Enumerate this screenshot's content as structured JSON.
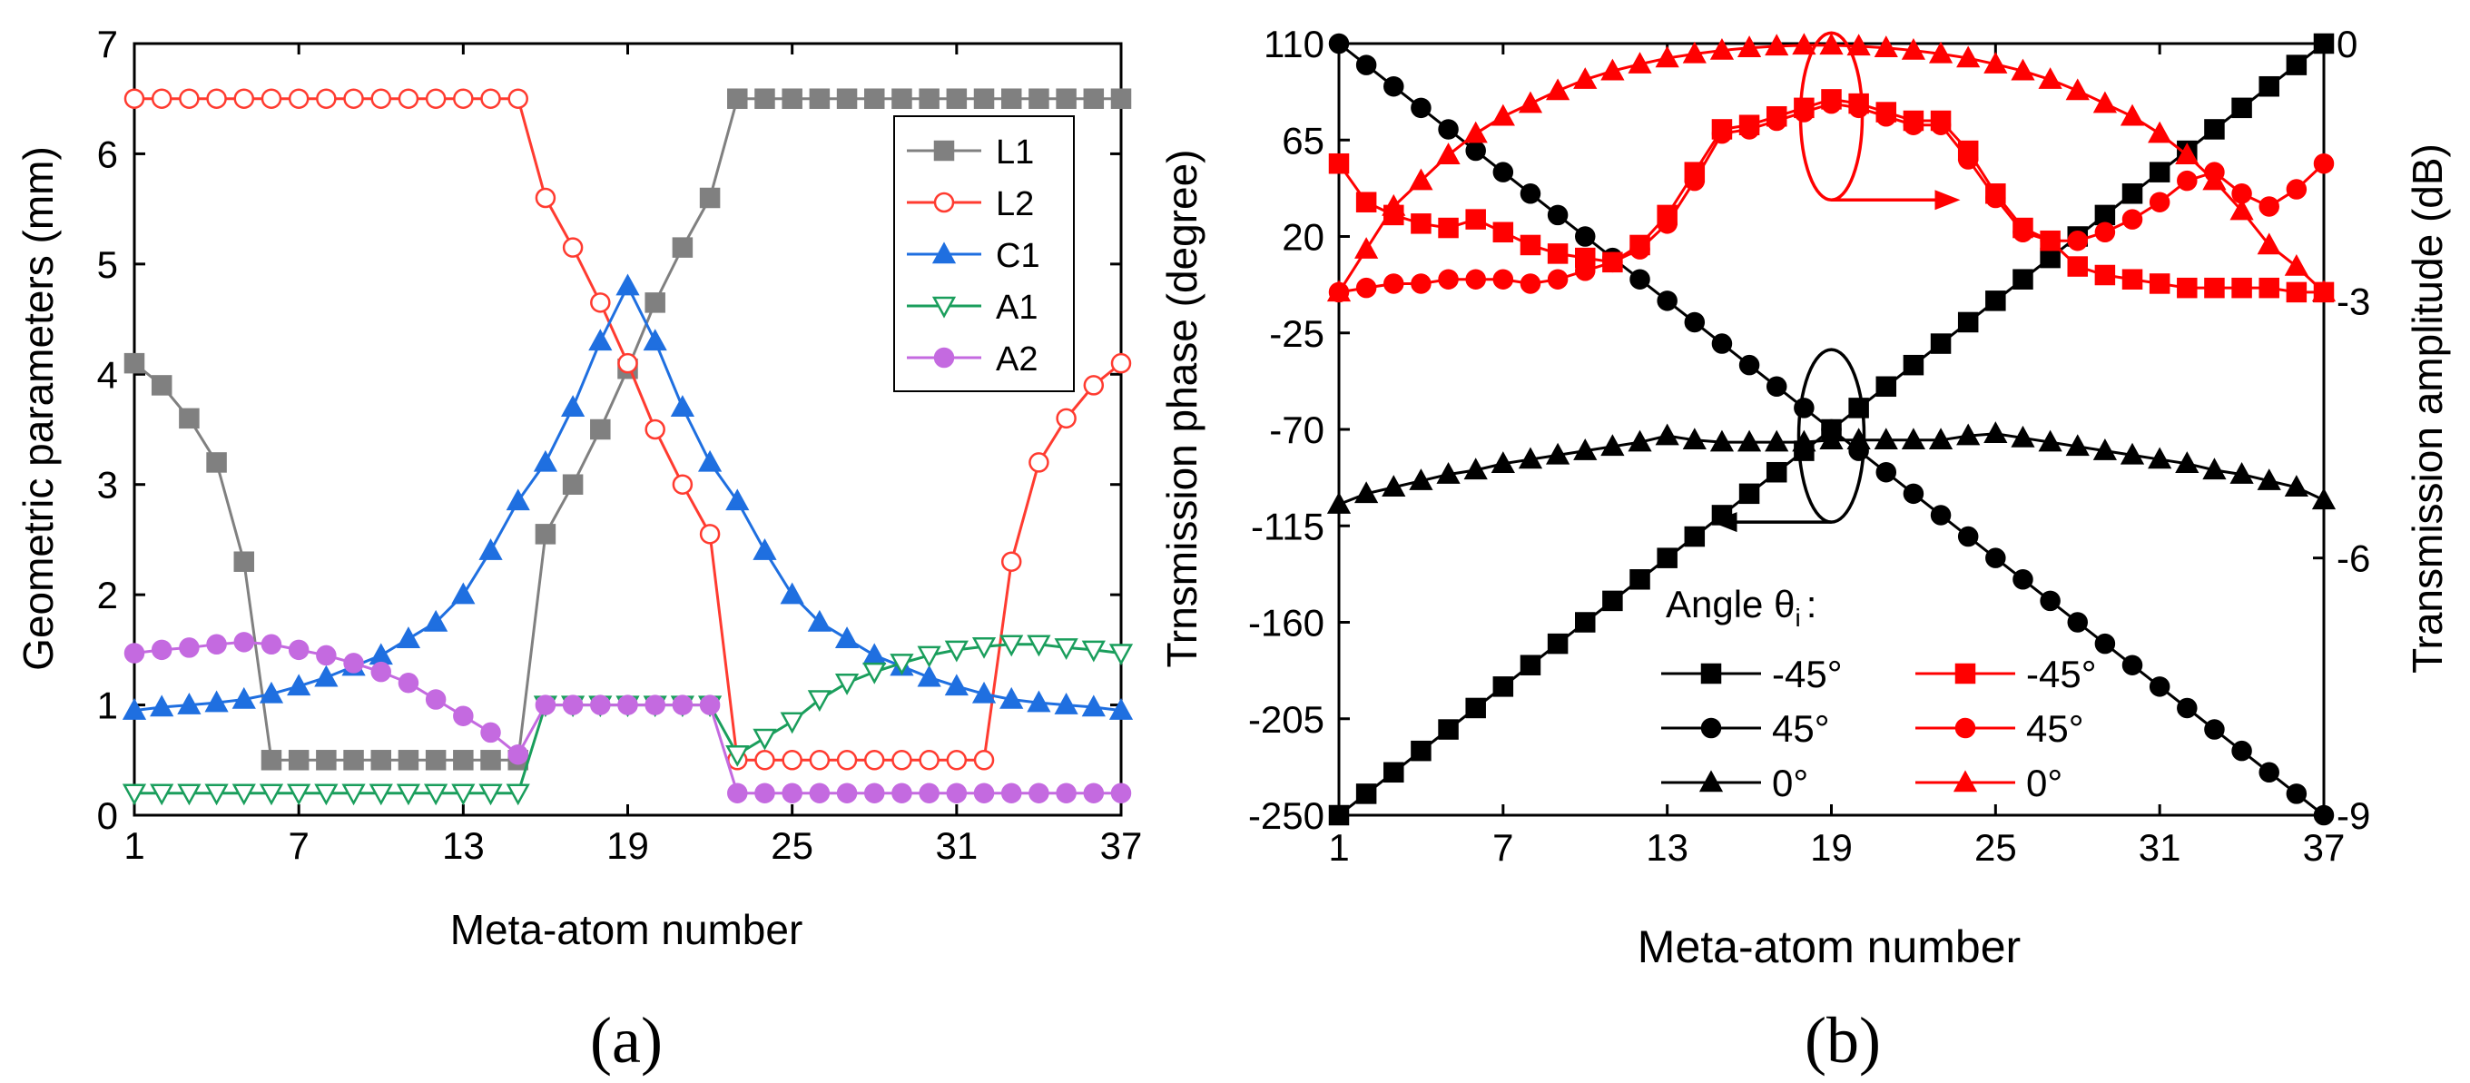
{
  "figure": {
    "panel_labels": [
      "(a)",
      "(b)"
    ]
  },
  "chart_data": [
    {
      "type": "line",
      "panel": "(a)",
      "title": "",
      "xlabel": "Meta-atom number",
      "ylabel": "Geometric parameters (mm)",
      "xlim": [
        1,
        37
      ],
      "ylim": [
        0,
        7
      ],
      "xticks": [
        1,
        7,
        13,
        19,
        25,
        31,
        37
      ],
      "yticks": [
        0,
        1,
        2,
        3,
        4,
        5,
        6,
        7
      ],
      "grid": false,
      "legend_position": "top-right",
      "x": [
        1,
        2,
        3,
        4,
        5,
        6,
        7,
        8,
        9,
        10,
        11,
        12,
        13,
        14,
        15,
        16,
        17,
        18,
        19,
        20,
        21,
        22,
        23,
        24,
        25,
        26,
        27,
        28,
        29,
        30,
        31,
        32,
        33,
        34,
        35,
        36,
        37
      ],
      "series": [
        {
          "name": "L1",
          "color": "#808080",
          "marker": "square",
          "values": [
            4.1,
            3.9,
            3.6,
            3.2,
            2.3,
            0.5,
            0.5,
            0.5,
            0.5,
            0.5,
            0.5,
            0.5,
            0.5,
            0.5,
            0.5,
            2.55,
            3.0,
            3.5,
            4.05,
            4.65,
            5.15,
            5.6,
            6.5,
            6.5,
            6.5,
            6.5,
            6.5,
            6.5,
            6.5,
            6.5,
            6.5,
            6.5,
            6.5,
            6.5,
            6.5,
            6.5,
            6.5
          ]
        },
        {
          "name": "L2",
          "color": "#ff3b30",
          "marker": "circle-open",
          "values": [
            6.5,
            6.5,
            6.5,
            6.5,
            6.5,
            6.5,
            6.5,
            6.5,
            6.5,
            6.5,
            6.5,
            6.5,
            6.5,
            6.5,
            6.5,
            5.6,
            5.15,
            4.65,
            4.1,
            3.5,
            3.0,
            2.55,
            0.5,
            0.5,
            0.5,
            0.5,
            0.5,
            0.5,
            0.5,
            0.5,
            0.5,
            0.5,
            2.3,
            3.2,
            3.6,
            3.9,
            4.1
          ]
        },
        {
          "name": "C1",
          "color": "#1f6fe0",
          "marker": "triangle-up",
          "values": [
            0.95,
            0.98,
            1.0,
            1.02,
            1.05,
            1.1,
            1.17,
            1.25,
            1.35,
            1.45,
            1.6,
            1.75,
            2.0,
            2.4,
            2.85,
            3.2,
            3.7,
            4.3,
            4.8,
            4.3,
            3.7,
            3.2,
            2.85,
            2.4,
            2.0,
            1.75,
            1.6,
            1.45,
            1.35,
            1.25,
            1.17,
            1.1,
            1.05,
            1.02,
            1.0,
            0.98,
            0.95
          ]
        },
        {
          "name": "A1",
          "color": "#1a9e5c",
          "marker": "triangle-down-open",
          "values": [
            0.2,
            0.2,
            0.2,
            0.2,
            0.2,
            0.2,
            0.2,
            0.2,
            0.2,
            0.2,
            0.2,
            0.2,
            0.2,
            0.2,
            0.2,
            1.0,
            1.0,
            1.0,
            1.0,
            1.0,
            1.0,
            1.0,
            0.55,
            0.7,
            0.85,
            1.05,
            1.2,
            1.3,
            1.38,
            1.45,
            1.5,
            1.53,
            1.55,
            1.55,
            1.52,
            1.5,
            1.47
          ]
        },
        {
          "name": "A2",
          "color": "#c46ae0",
          "marker": "circle",
          "values": [
            1.47,
            1.5,
            1.52,
            1.55,
            1.57,
            1.55,
            1.5,
            1.45,
            1.38,
            1.3,
            1.2,
            1.05,
            0.9,
            0.75,
            0.55,
            1.0,
            1.0,
            1.0,
            1.0,
            1.0,
            1.0,
            1.0,
            0.2,
            0.2,
            0.2,
            0.2,
            0.2,
            0.2,
            0.2,
            0.2,
            0.2,
            0.2,
            0.2,
            0.2,
            0.2,
            0.2,
            0.2
          ]
        }
      ]
    },
    {
      "type": "line",
      "panel": "(b)",
      "title": "",
      "xlabel": "Meta-atom number",
      "ylabel": "Trnsmission phase (degree)",
      "y2label": "Transmission amplitude (dB)",
      "xlim": [
        1,
        37
      ],
      "ylim": [
        -250,
        110
      ],
      "y2lim": [
        -9,
        0
      ],
      "xticks": [
        1,
        7,
        13,
        19,
        25,
        31,
        37
      ],
      "yticks": [
        110,
        65,
        20,
        -25,
        -70,
        -115,
        -160,
        -205,
        -250
      ],
      "y2ticks": [
        0,
        -3,
        -6,
        -9
      ],
      "grid": false,
      "legend_title": "Angle θ",
      "legend_title_subscript": "i",
      "legend_title_suffix": ":",
      "legend_position": "bottom-center",
      "x": [
        1,
        2,
        3,
        4,
        5,
        6,
        7,
        8,
        9,
        10,
        11,
        12,
        13,
        14,
        15,
        16,
        17,
        18,
        19,
        20,
        21,
        22,
        23,
        24,
        25,
        26,
        27,
        28,
        29,
        30,
        31,
        32,
        33,
        34,
        35,
        36,
        37
      ],
      "series": [
        {
          "name": "-45°",
          "axis": "left",
          "color": "#000000",
          "marker": "square",
          "values": [
            -250,
            -240,
            -230,
            -220,
            -210,
            -200,
            -190,
            -180,
            -170,
            -160,
            -150,
            -140,
            -130,
            -120,
            -110,
            -100,
            -90,
            -80,
            -70,
            -60,
            -50,
            -40,
            -30,
            -20,
            -10,
            0,
            10,
            20,
            30,
            40,
            50,
            60,
            70,
            80,
            90,
            100,
            110
          ]
        },
        {
          "name": "45°",
          "axis": "left",
          "color": "#000000",
          "marker": "circle",
          "values": [
            110,
            100,
            90,
            80,
            70,
            60,
            50,
            40,
            30,
            20,
            10,
            0,
            -10,
            -20,
            -30,
            -40,
            -50,
            -60,
            -70,
            -80,
            -90,
            -100,
            -110,
            -120,
            -130,
            -140,
            -150,
            -160,
            -170,
            -180,
            -190,
            -200,
            -210,
            -220,
            -230,
            -240,
            -250
          ]
        },
        {
          "name": "0°",
          "axis": "left",
          "color": "#000000",
          "marker": "triangle-up",
          "values": [
            -105,
            -100,
            -97,
            -94,
            -91,
            -89,
            -86,
            -84,
            -82,
            -80,
            -78,
            -76,
            -73,
            -75,
            -76,
            -76,
            -76,
            -76,
            -75,
            -75,
            -75,
            -75,
            -75,
            -73,
            -72,
            -74,
            -76,
            -78,
            -80,
            -82,
            -84,
            -86,
            -89,
            -91,
            -94,
            -97,
            -103
          ]
        },
        {
          "name": "-45°",
          "axis": "right",
          "color": "#ff0000",
          "marker": "square",
          "values": [
            -1.4,
            -1.85,
            -2.0,
            -2.1,
            -2.15,
            -2.05,
            -2.2,
            -2.35,
            -2.45,
            -2.5,
            -2.55,
            -2.35,
            -2.0,
            -1.5,
            -1.0,
            -0.95,
            -0.85,
            -0.75,
            -0.65,
            -0.7,
            -0.8,
            -0.9,
            -0.9,
            -1.25,
            -1.75,
            -2.15,
            -2.3,
            -2.6,
            -2.7,
            -2.75,
            -2.8,
            -2.85,
            -2.85,
            -2.85,
            -2.85,
            -2.9,
            -2.9
          ]
        },
        {
          "name": "45°",
          "axis": "right",
          "color": "#ff0000",
          "marker": "circle",
          "values": [
            -2.9,
            -2.85,
            -2.8,
            -2.8,
            -2.75,
            -2.75,
            -2.75,
            -2.8,
            -2.75,
            -2.65,
            -2.55,
            -2.4,
            -2.1,
            -1.6,
            -1.05,
            -1.0,
            -0.9,
            -0.8,
            -0.7,
            -0.75,
            -0.85,
            -0.95,
            -0.95,
            -1.35,
            -1.8,
            -2.2,
            -2.3,
            -2.3,
            -2.2,
            -2.05,
            -1.85,
            -1.6,
            -1.5,
            -1.75,
            -1.9,
            -1.7,
            -1.4
          ]
        },
        {
          "name": "0°",
          "axis": "right",
          "color": "#ff0000",
          "marker": "triangle-up",
          "values": [
            -2.9,
            -2.4,
            -1.9,
            -1.6,
            -1.3,
            -1.05,
            -0.85,
            -0.7,
            -0.55,
            -0.42,
            -0.32,
            -0.24,
            -0.17,
            -0.12,
            -0.08,
            -0.05,
            -0.03,
            -0.02,
            -0.02,
            -0.03,
            -0.05,
            -0.08,
            -0.12,
            -0.17,
            -0.24,
            -0.32,
            -0.42,
            -0.55,
            -0.7,
            -0.85,
            -1.05,
            -1.3,
            -1.6,
            -1.95,
            -2.35,
            -2.6,
            -2.9
          ]
        }
      ],
      "annotations": {
        "red_ellipse": {
          "x": 19,
          "y2": -0.85
        },
        "black_ellipse": {
          "x": 19,
          "y": -73
        }
      }
    }
  ]
}
